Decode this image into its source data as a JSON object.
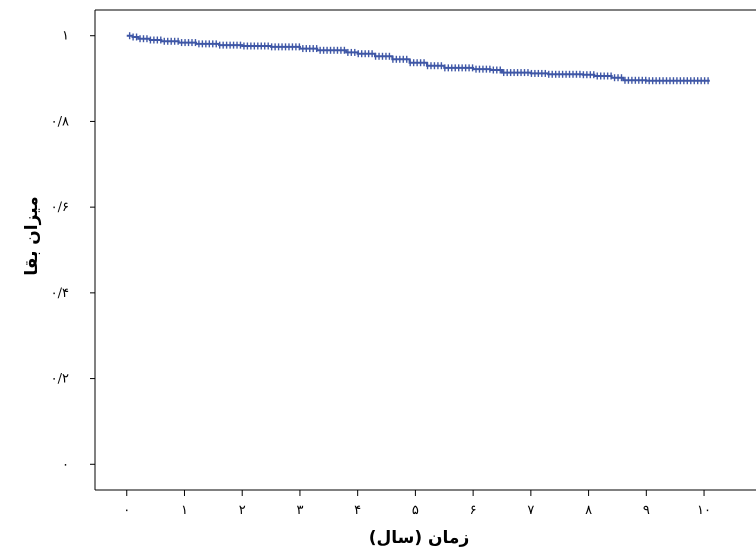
{
  "chart_data": {
    "type": "line",
    "title": "",
    "xlabel": "زمان (سال)",
    "ylabel": "میزان بقا",
    "xlim": [
      -0.55,
      10.9
    ],
    "ylim": [
      -0.06,
      1.06
    ],
    "x_ticks": [
      0,
      1,
      2,
      3,
      4,
      5,
      6,
      7,
      8,
      9,
      10
    ],
    "x_tick_labels": [
      "۰",
      "۱",
      "۲",
      "۳",
      "۴",
      "۵",
      "۶",
      "۷",
      "۸",
      "۹",
      "۱۰"
    ],
    "y_ticks": [
      0,
      0.2,
      0.4,
      0.6,
      0.8,
      1
    ],
    "y_tick_labels": [
      "۰",
      "۰/۲",
      "۰/۴",
      "۰/۶",
      "۰/۸",
      "۱"
    ],
    "grid": false,
    "legend": "none",
    "series": [
      {
        "color": "#3f57a6",
        "censor_marks": true,
        "x": [
          0,
          0.1,
          0.2,
          0.4,
          0.6,
          0.9,
          1.2,
          1.6,
          2.0,
          2.5,
          3.0,
          3.3,
          3.8,
          4.0,
          4.3,
          4.6,
          4.9,
          5.2,
          5.5,
          6.0,
          6.3,
          6.5,
          7.0,
          7.3,
          7.9,
          8.1,
          8.4,
          8.6,
          9.0,
          10.0,
          10.1
        ],
        "y": [
          1.0,
          0.997,
          0.993,
          0.99,
          0.987,
          0.984,
          0.981,
          0.978,
          0.976,
          0.974,
          0.97,
          0.966,
          0.961,
          0.958,
          0.952,
          0.945,
          0.937,
          0.93,
          0.925,
          0.922,
          0.92,
          0.914,
          0.912,
          0.91,
          0.909,
          0.906,
          0.902,
          0.896,
          0.895,
          0.895,
          0.895
        ]
      }
    ]
  }
}
